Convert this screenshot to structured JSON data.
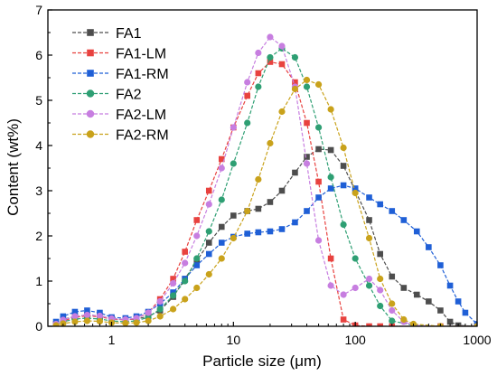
{
  "chart_data": {
    "type": "scatter",
    "title": "",
    "xlabel": "Particle size (μm)",
    "ylabel": "Content (wt%)",
    "xscale": "log",
    "xlim": [
      0.3,
      1000
    ],
    "ylim": [
      0,
      7
    ],
    "x_ticks": [
      {
        "value": 1,
        "label": "1"
      },
      {
        "value": 10,
        "label": "10"
      },
      {
        "value": 100,
        "label": "100"
      },
      {
        "value": 1000,
        "label": "1000"
      }
    ],
    "y_ticks": [
      {
        "value": 0,
        "label": "0"
      },
      {
        "value": 1,
        "label": "1"
      },
      {
        "value": 2,
        "label": "2"
      },
      {
        "value": 3,
        "label": "3"
      },
      {
        "value": 4,
        "label": "4"
      },
      {
        "value": 5,
        "label": "5"
      },
      {
        "value": 6,
        "label": "6"
      },
      {
        "value": 7,
        "label": "7"
      }
    ],
    "grid": false,
    "legend": "top-left",
    "series": [
      {
        "name": "FA1",
        "color": "#4d4d4d",
        "marker": "square",
        "x": [
          0.35,
          0.4,
          0.5,
          0.63,
          0.8,
          1.0,
          1.3,
          1.6,
          2.0,
          2.5,
          3.2,
          4.0,
          5.0,
          6.3,
          8.0,
          10,
          13,
          16,
          20,
          25,
          32,
          40,
          50,
          63,
          80,
          100,
          130,
          160,
          200,
          250,
          320,
          400,
          500,
          600,
          700,
          1000
        ],
        "y": [
          0.05,
          0.15,
          0.22,
          0.25,
          0.23,
          0.17,
          0.15,
          0.16,
          0.22,
          0.35,
          0.65,
          1.05,
          1.45,
          1.85,
          2.2,
          2.45,
          2.55,
          2.6,
          2.75,
          3.0,
          3.4,
          3.75,
          3.92,
          3.9,
          3.55,
          3.0,
          2.35,
          1.6,
          1.1,
          0.85,
          0.7,
          0.55,
          0.35,
          0.1,
          0.02,
          0.0
        ]
      },
      {
        "name": "FA1-LM",
        "color": "#e8423f",
        "marker": "square",
        "x": [
          0.35,
          0.4,
          0.5,
          0.63,
          0.8,
          1.0,
          1.3,
          1.6,
          2.0,
          2.5,
          3.2,
          4.0,
          5.0,
          6.3,
          8.0,
          10,
          13,
          16,
          20,
          25,
          32,
          40,
          50,
          63,
          80,
          100,
          130,
          160,
          200,
          300,
          500,
          1000
        ],
        "y": [
          0.05,
          0.12,
          0.2,
          0.23,
          0.21,
          0.16,
          0.14,
          0.17,
          0.3,
          0.6,
          1.05,
          1.65,
          2.35,
          3.0,
          3.7,
          4.4,
          5.1,
          5.6,
          5.85,
          5.8,
          5.4,
          4.5,
          3.2,
          1.5,
          0.15,
          0.02,
          0.0,
          0.0,
          0.0,
          0.0,
          0.0,
          0.0
        ]
      },
      {
        "name": "FA1-RM",
        "color": "#1f5fd6",
        "marker": "square",
        "x": [
          0.35,
          0.4,
          0.5,
          0.63,
          0.8,
          1.0,
          1.3,
          1.6,
          2.0,
          2.5,
          3.2,
          4.0,
          5.0,
          6.3,
          8.0,
          10,
          13,
          16,
          20,
          25,
          32,
          40,
          50,
          63,
          80,
          100,
          130,
          160,
          200,
          250,
          320,
          400,
          500,
          600,
          700,
          800,
          1000
        ],
        "y": [
          0.1,
          0.22,
          0.32,
          0.35,
          0.3,
          0.2,
          0.18,
          0.22,
          0.32,
          0.5,
          0.75,
          1.05,
          1.35,
          1.6,
          1.85,
          1.98,
          2.05,
          2.08,
          2.1,
          2.15,
          2.3,
          2.55,
          2.85,
          3.05,
          3.12,
          3.05,
          2.85,
          2.7,
          2.55,
          2.35,
          2.1,
          1.75,
          1.35,
          0.9,
          0.55,
          0.3,
          0.05
        ]
      },
      {
        "name": "FA2",
        "color": "#2e9f73",
        "marker": "circle",
        "x": [
          0.35,
          0.4,
          0.5,
          0.63,
          0.8,
          1.0,
          1.3,
          1.6,
          2.0,
          2.5,
          3.2,
          4.0,
          5.0,
          6.3,
          8.0,
          10,
          13,
          16,
          20,
          25,
          32,
          40,
          50,
          63,
          80,
          100,
          130,
          160,
          200,
          300,
          500,
          1000
        ],
        "y": [
          0.04,
          0.1,
          0.16,
          0.18,
          0.16,
          0.12,
          0.1,
          0.12,
          0.2,
          0.38,
          0.68,
          1.0,
          1.5,
          2.1,
          2.8,
          3.6,
          4.5,
          5.3,
          5.95,
          6.15,
          5.95,
          5.3,
          4.4,
          3.3,
          2.25,
          1.5,
          0.9,
          0.45,
          0.12,
          0.02,
          0.0,
          0.0
        ]
      },
      {
        "name": "FA2-LM",
        "color": "#c77ee0",
        "marker": "circle",
        "x": [
          0.35,
          0.4,
          0.5,
          0.63,
          0.8,
          1.0,
          1.3,
          1.6,
          2.0,
          2.5,
          3.2,
          4.0,
          5.0,
          6.3,
          8.0,
          10,
          13,
          16,
          20,
          25,
          32,
          40,
          50,
          63,
          80,
          100,
          130,
          160,
          200,
          250,
          300,
          500,
          1000
        ],
        "y": [
          0.05,
          0.14,
          0.22,
          0.25,
          0.23,
          0.17,
          0.15,
          0.18,
          0.3,
          0.55,
          0.95,
          1.4,
          2.0,
          2.7,
          3.5,
          4.4,
          5.4,
          6.05,
          6.4,
          6.2,
          5.3,
          3.6,
          1.9,
          0.9,
          0.7,
          0.85,
          1.05,
          0.8,
          0.35,
          0.1,
          0.02,
          0.0,
          0.0
        ]
      },
      {
        "name": "FA2-RM",
        "color": "#c9a21b",
        "marker": "circle",
        "x": [
          0.35,
          0.4,
          0.5,
          0.63,
          0.8,
          1.0,
          1.3,
          1.6,
          2.0,
          2.5,
          3.2,
          4.0,
          5.0,
          6.3,
          8.0,
          10,
          13,
          16,
          20,
          25,
          32,
          40,
          50,
          63,
          80,
          100,
          130,
          160,
          200,
          250,
          300,
          500,
          1000
        ],
        "y": [
          0.02,
          0.06,
          0.1,
          0.12,
          0.11,
          0.08,
          0.07,
          0.08,
          0.12,
          0.22,
          0.38,
          0.6,
          0.85,
          1.15,
          1.5,
          1.95,
          2.55,
          3.25,
          4.05,
          4.75,
          5.25,
          5.45,
          5.35,
          4.8,
          3.95,
          2.95,
          1.95,
          1.05,
          0.5,
          0.15,
          0.05,
          0.0,
          0.0
        ]
      }
    ]
  }
}
